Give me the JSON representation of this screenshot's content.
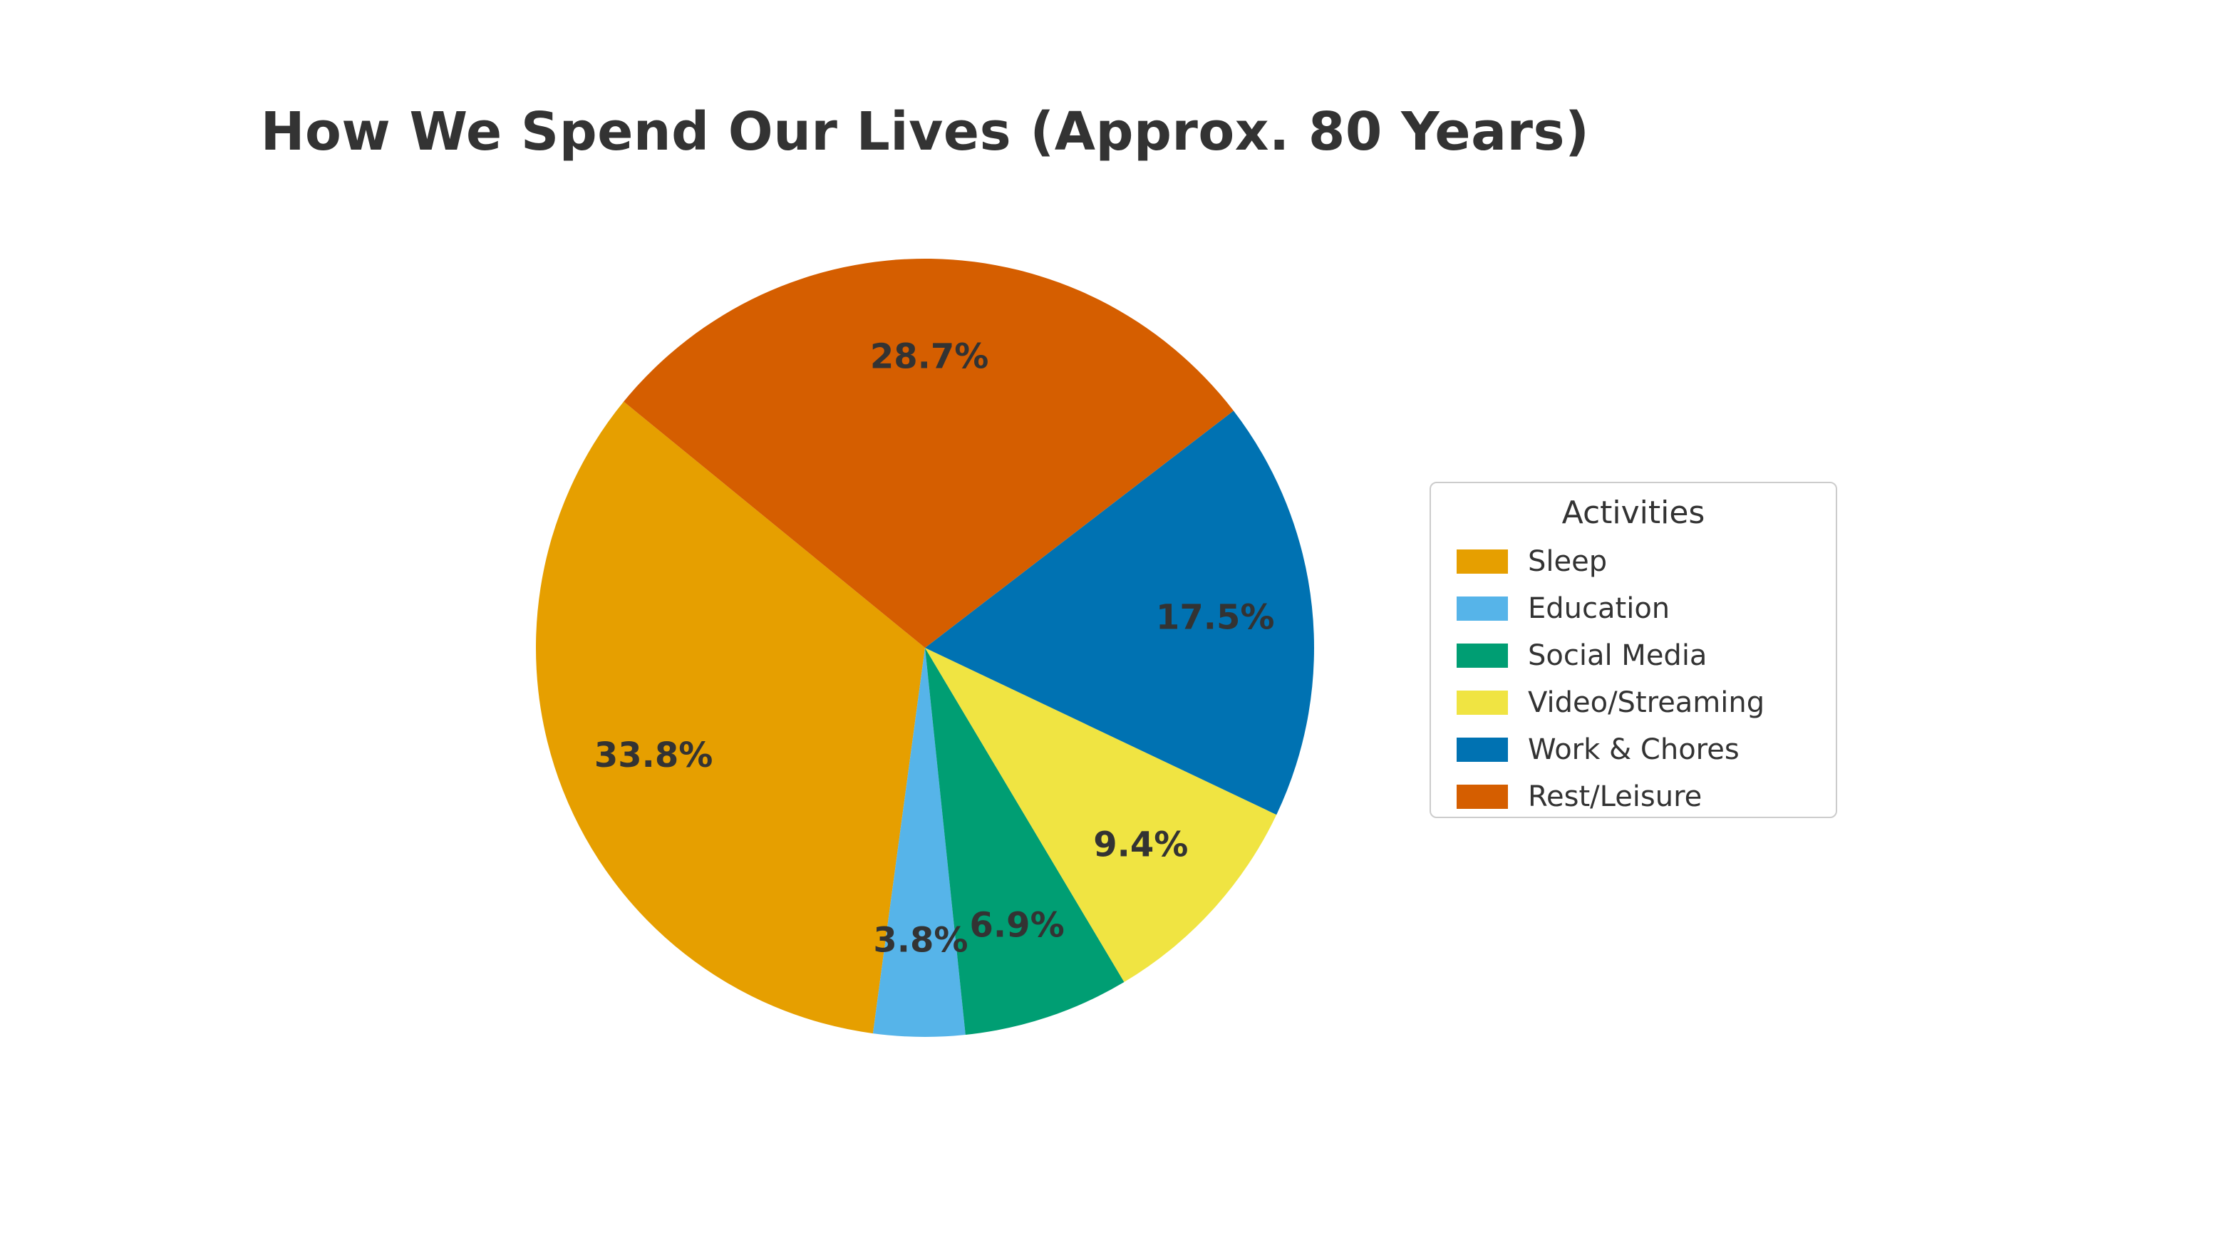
{
  "page": {
    "background_color": "#ffffff",
    "text_color": "#333333"
  },
  "chart_data": {
    "type": "pie",
    "title": "How We Spend Our Lives (Approx. 80 Years)",
    "legend_title": "Activities",
    "legend_position": "center right",
    "labels": [
      "Sleep",
      "Education",
      "Social Media",
      "Video/Streaming",
      "Work & Chores",
      "Rest/Leisure"
    ],
    "values": [
      33.8,
      3.8,
      6.9,
      9.4,
      17.5,
      28.7
    ],
    "pct_labels": [
      "33.8%",
      "3.8%",
      "6.9%",
      "9.4%",
      "17.5%",
      "28.7%"
    ],
    "colors": [
      "#E69F00",
      "#56B4E9",
      "#009E73",
      "#F0E442",
      "#0072B2",
      "#D55E00"
    ],
    "start_angle_deg": 140.75,
    "counterclockwise": true,
    "pct_label_distance": 0.75,
    "label_text_color": "#333333",
    "legend_border_color": "#cccccc"
  }
}
